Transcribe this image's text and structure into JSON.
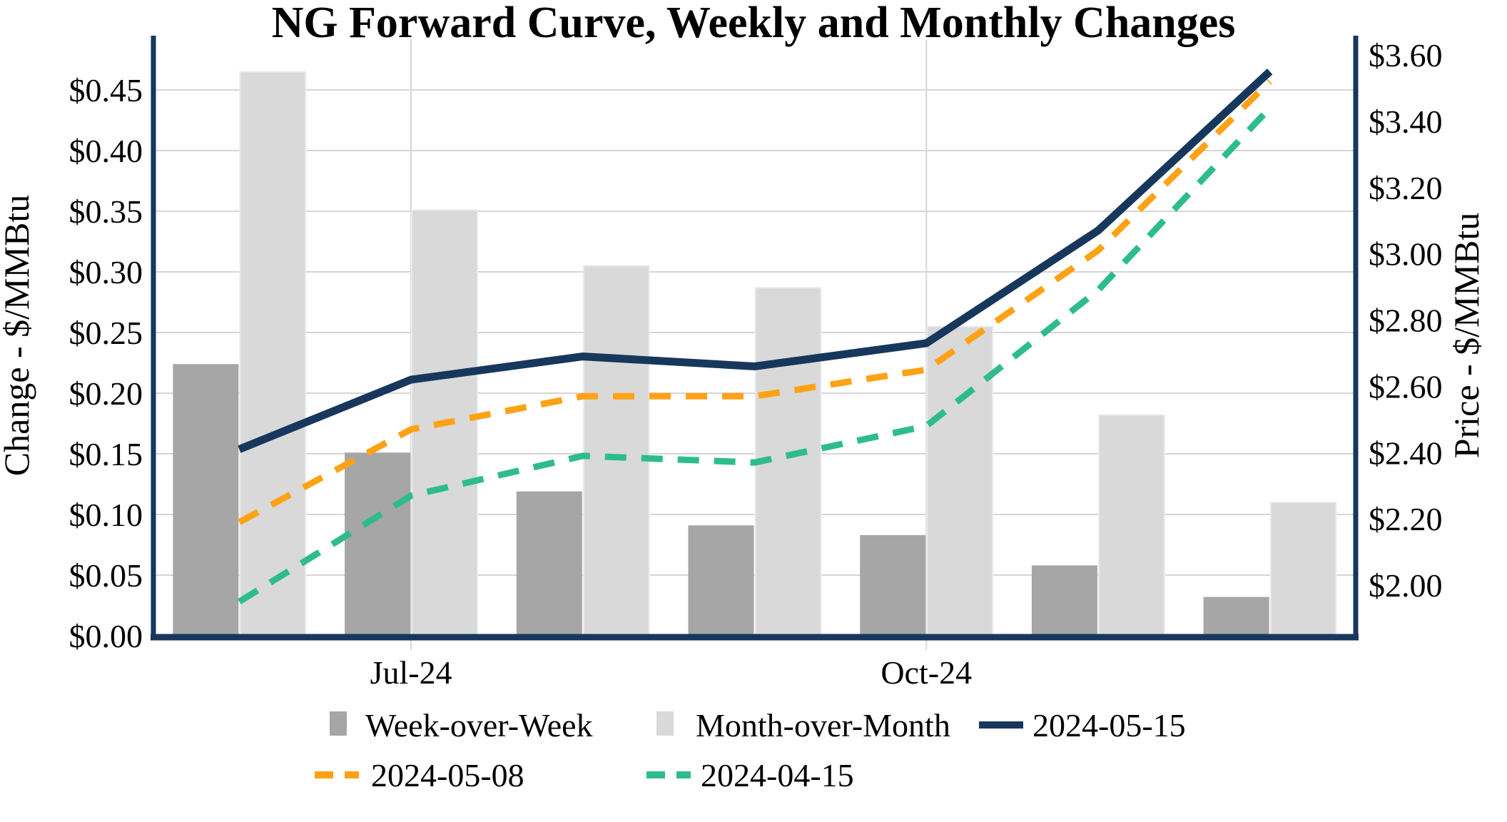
{
  "title": "NG Forward Curve, Weekly and Monthly Changes",
  "left_axis": {
    "title": "Change - $/MMBtu",
    "min": 0.0,
    "max": 0.45,
    "step": 0.05,
    "tick_labels": [
      "$0.00",
      "$0.05",
      "$0.10",
      "$0.15",
      "$0.20",
      "$0.25",
      "$0.30",
      "$0.35",
      "$0.40",
      "$0.45"
    ]
  },
  "right_axis": {
    "title": "Price - $/MMBtu",
    "min": 2.0,
    "max": 3.6,
    "step": 0.2,
    "tick_labels": [
      "$2.00",
      "$2.20",
      "$2.40",
      "$2.60",
      "$2.80",
      "$3.00",
      "$3.20",
      "$3.40",
      "$3.60"
    ]
  },
  "x_axis": {
    "visible_tick_labels": [
      {
        "index": 1,
        "label": "Jul-24"
      },
      {
        "index": 4,
        "label": "Oct-24"
      }
    ]
  },
  "legend": [
    {
      "label": "Week-over-Week",
      "swatch": "bar",
      "color_key": "bar_dark"
    },
    {
      "label": "Month-over-Month",
      "swatch": "bar",
      "color_key": "bar_light"
    },
    {
      "label": "2024-05-15",
      "swatch": "line",
      "dashed": false,
      "color_key": "line_navy"
    },
    {
      "label": "2024-05-08",
      "swatch": "line",
      "dashed": true,
      "color_key": "line_orange"
    },
    {
      "label": "2024-04-15",
      "swatch": "line",
      "dashed": true,
      "color_key": "line_green"
    }
  ],
  "colors": {
    "bar_dark": "#a6a6a6",
    "bar_light": "#d9d9d9",
    "bar_light_stroke": "#e9ecf1",
    "line_navy": "#17375c",
    "line_orange": "#ffa216",
    "line_green": "#2ebd8a",
    "gridline": "#d6d6d6",
    "axis_spine": "#17375c"
  },
  "chart_data": {
    "type": "combo",
    "categories": [
      "",
      "Jul-24",
      "",
      "",
      "Oct-24",
      "",
      ""
    ],
    "bar_series": [
      {
        "name": "Week-over-Week",
        "axis": "left",
        "values": [
          0.224,
          0.151,
          0.119,
          0.091,
          0.083,
          0.058,
          0.032
        ]
      },
      {
        "name": "Month-over-Month",
        "axis": "left",
        "values": [
          0.465,
          0.351,
          0.305,
          0.287,
          0.255,
          0.182,
          0.11
        ]
      }
    ],
    "line_series": [
      {
        "name": "2024-05-15",
        "axis": "right",
        "dashed": false,
        "values": [
          2.41,
          2.62,
          2.69,
          2.66,
          2.73,
          3.07,
          3.55
        ]
      },
      {
        "name": "2024-05-08",
        "axis": "right",
        "dashed": true,
        "values": [
          2.19,
          2.47,
          2.57,
          2.57,
          2.65,
          3.01,
          3.52
        ]
      },
      {
        "name": "2024-04-15",
        "axis": "right",
        "dashed": true,
        "values": [
          1.95,
          2.27,
          2.39,
          2.37,
          2.48,
          2.89,
          3.44
        ]
      }
    ],
    "title": "NG Forward Curve, Weekly and Monthly Changes",
    "xlabel": "",
    "ylabel_left": "Change - $/MMBtu",
    "ylabel_right": "Price - $/MMBtu",
    "ylim_left": [
      0.0,
      0.45
    ],
    "ylim_right": [
      2.0,
      3.6
    ],
    "grid": true,
    "legend_position": "bottom"
  }
}
